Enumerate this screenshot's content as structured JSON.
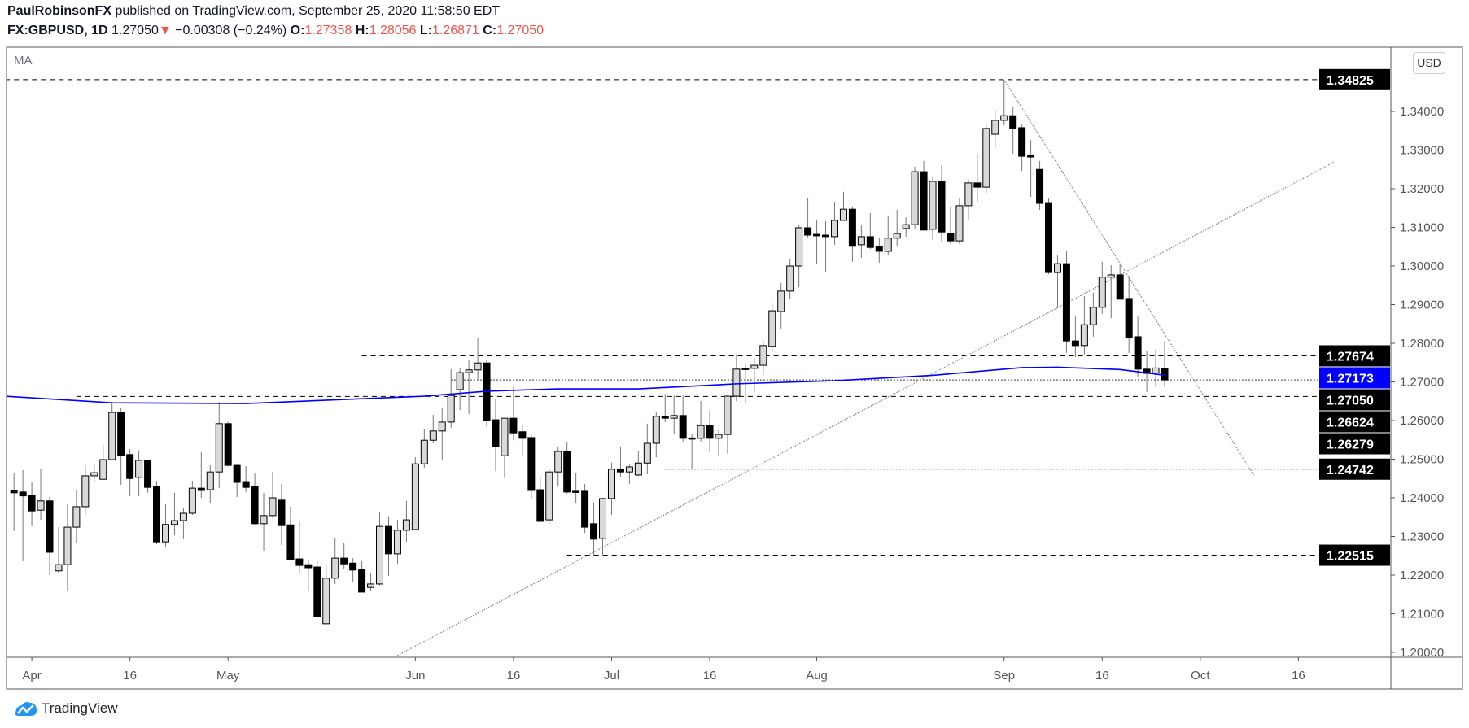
{
  "header": {
    "author": "PaulRobinsonFX",
    "published": " published on TradingView.com, September 25, 2020 11:58:50 EDT",
    "symbol": "FX:GBPUSD, 1D",
    "last": "1.27050",
    "change_icon": "down-triangle-icon",
    "change": "−0.00308 (−0.24%)",
    "o_label": "O:",
    "o": "1.27358",
    "h_label": "H:",
    "h": "1.28056",
    "l_label": "L:",
    "l": "1.26871",
    "c_label": "C:",
    "c": "1.27050"
  },
  "indicator_label": "MA",
  "currency_badge": "USD",
  "footer": {
    "brand": "TradingView",
    "logo_icon": "tradingview-logo-icon"
  },
  "colors": {
    "up_body": "#d9d9d9",
    "down_body": "#000000",
    "wick": "#777777",
    "ma_line": "#0000ff",
    "negative": "#ef5350",
    "label_bg": "#000000",
    "ma_label_bg": "#0000ff",
    "trendline": "#8a8a8a",
    "brand": "#2196f3"
  },
  "chart_data": {
    "type": "candlestick",
    "title": "FX:GBPUSD, 1D",
    "x_unit": "bar index (trading days)",
    "ylim": [
      1.195,
      1.352
    ],
    "candles_ohlc": [
      [
        1.2418,
        1.2465,
        1.2314,
        1.2413
      ],
      [
        1.2415,
        1.2472,
        1.2236,
        1.2405
      ],
      [
        1.2406,
        1.2442,
        1.2326,
        1.2366
      ],
      [
        1.2368,
        1.2474,
        1.2343,
        1.2392
      ],
      [
        1.2392,
        1.2402,
        1.22,
        1.2259
      ],
      [
        1.2211,
        1.2324,
        1.2206,
        1.2227
      ],
      [
        1.2227,
        1.2383,
        1.2158,
        1.2324
      ],
      [
        1.2324,
        1.2419,
        1.2284,
        1.2377
      ],
      [
        1.2377,
        1.2484,
        1.2356,
        1.2457
      ],
      [
        1.2457,
        1.2486,
        1.2442,
        1.2465
      ],
      [
        1.2448,
        1.2537,
        1.2448,
        1.2499
      ],
      [
        1.2499,
        1.2648,
        1.2499,
        1.2621
      ],
      [
        1.2621,
        1.2632,
        1.2434,
        1.251
      ],
      [
        1.2512,
        1.2526,
        1.2404,
        1.245
      ],
      [
        1.2453,
        1.2522,
        1.2404,
        1.2497
      ],
      [
        1.2497,
        1.2499,
        1.2413,
        1.2427
      ],
      [
        1.2429,
        1.2444,
        1.228,
        1.2286
      ],
      [
        1.2286,
        1.2383,
        1.2272,
        1.2331
      ],
      [
        1.2331,
        1.2413,
        1.2303,
        1.2341
      ],
      [
        1.2341,
        1.2375,
        1.2293,
        1.236
      ],
      [
        1.236,
        1.2444,
        1.2356,
        1.2425
      ],
      [
        1.2425,
        1.2518,
        1.24,
        1.2419
      ],
      [
        1.2421,
        1.2484,
        1.2385,
        1.2467
      ],
      [
        1.2467,
        1.2648,
        1.2425,
        1.2592
      ],
      [
        1.2592,
        1.2597,
        1.2482,
        1.2484
      ],
      [
        1.2484,
        1.2486,
        1.2402,
        1.244
      ],
      [
        1.2442,
        1.2482,
        1.2415,
        1.2427
      ],
      [
        1.2429,
        1.2463,
        1.2331,
        1.2333
      ],
      [
        1.2333,
        1.2413,
        1.2261,
        1.2354
      ],
      [
        1.2354,
        1.2467,
        1.2347,
        1.24
      ],
      [
        1.2394,
        1.2436,
        1.2278,
        1.2328
      ],
      [
        1.233,
        1.2377,
        1.224,
        1.224
      ],
      [
        1.2242,
        1.2339,
        1.2204,
        1.2225
      ],
      [
        1.2227,
        1.2238,
        1.216,
        1.2219
      ],
      [
        1.2221,
        1.2236,
        1.2093,
        1.2093
      ],
      [
        1.2074,
        1.2225,
        1.2072,
        1.2192
      ],
      [
        1.2192,
        1.2295,
        1.2177,
        1.2244
      ],
      [
        1.2244,
        1.2284,
        1.2217,
        1.2229
      ],
      [
        1.2231,
        1.2244,
        1.2181,
        1.2213
      ],
      [
        1.2215,
        1.2236,
        1.2156,
        1.2156
      ],
      [
        1.2168,
        1.2206,
        1.2158,
        1.2177
      ],
      [
        1.2177,
        1.2362,
        1.2173,
        1.2326
      ],
      [
        1.2326,
        1.2352,
        1.2198,
        1.2255
      ],
      [
        1.2255,
        1.2343,
        1.2229,
        1.2316
      ],
      [
        1.2316,
        1.2392,
        1.2286,
        1.2343
      ],
      [
        1.2318,
        1.2505,
        1.2318,
        1.2488
      ],
      [
        1.2488,
        1.2577,
        1.2478,
        1.2549
      ],
      [
        1.2549,
        1.2615,
        1.2541,
        1.2573
      ],
      [
        1.2573,
        1.2634,
        1.2497,
        1.2596
      ],
      [
        1.2596,
        1.2733,
        1.2581,
        1.2665
      ],
      [
        1.268,
        1.2737,
        1.2627,
        1.2724
      ],
      [
        1.2724,
        1.2758,
        1.2617,
        1.2731
      ],
      [
        1.2731,
        1.2815,
        1.2705,
        1.2749
      ],
      [
        1.2749,
        1.2756,
        1.2585,
        1.26
      ],
      [
        1.2602,
        1.2655,
        1.2469,
        1.2533
      ],
      [
        1.2509,
        1.2606,
        1.2451,
        1.2606
      ],
      [
        1.2606,
        1.2688,
        1.2549,
        1.2568
      ],
      [
        1.2571,
        1.2589,
        1.2509,
        1.2554
      ],
      [
        1.2556,
        1.2566,
        1.2398,
        1.2419
      ],
      [
        1.2421,
        1.2455,
        1.2339,
        1.2339
      ],
      [
        1.2343,
        1.2476,
        1.2331,
        1.2467
      ],
      [
        1.2467,
        1.2533,
        1.2429,
        1.252
      ],
      [
        1.252,
        1.2543,
        1.2411,
        1.2415
      ],
      [
        1.2417,
        1.2463,
        1.2385,
        1.2415
      ],
      [
        1.2417,
        1.2436,
        1.2309,
        1.2324
      ],
      [
        1.2333,
        1.2387,
        1.2248,
        1.2293
      ],
      [
        1.2295,
        1.24,
        1.2253,
        1.2398
      ],
      [
        1.2398,
        1.2491,
        1.2356,
        1.2474
      ],
      [
        1.2474,
        1.2533,
        1.2453,
        1.2467
      ],
      [
        1.2467,
        1.2486,
        1.2436,
        1.248
      ],
      [
        1.2459,
        1.252,
        1.2457,
        1.249
      ],
      [
        1.249,
        1.2592,
        1.2461,
        1.2541
      ],
      [
        1.2541,
        1.2623,
        1.2505,
        1.2611
      ],
      [
        1.2611,
        1.2669,
        1.2596,
        1.2606
      ],
      [
        1.2606,
        1.2665,
        1.2564,
        1.2613
      ],
      [
        1.2613,
        1.2667,
        1.2545,
        1.2554
      ],
      [
        1.2555,
        1.2564,
        1.2476,
        1.2553
      ],
      [
        1.2554,
        1.2651,
        1.2545,
        1.2587
      ],
      [
        1.2587,
        1.2625,
        1.2518,
        1.2554
      ],
      [
        1.2554,
        1.2575,
        1.2509,
        1.2564
      ],
      [
        1.2564,
        1.2667,
        1.2514,
        1.2663
      ],
      [
        1.2663,
        1.2771,
        1.265,
        1.2733
      ],
      [
        1.2735,
        1.2745,
        1.2646,
        1.2733
      ],
      [
        1.2735,
        1.2762,
        1.2674,
        1.2743
      ],
      [
        1.2743,
        1.2806,
        1.2718,
        1.2794
      ],
      [
        1.2792,
        1.2905,
        1.2777,
        1.2884
      ],
      [
        1.2882,
        1.2956,
        1.2838,
        1.2935
      ],
      [
        1.2935,
        1.3019,
        1.2914,
        1.3
      ],
      [
        1.3,
        1.3107,
        1.2945,
        1.3099
      ],
      [
        1.3099,
        1.3175,
        1.3074,
        1.308
      ],
      [
        1.3082,
        1.312,
        1.3006,
        1.3078
      ],
      [
        1.308,
        1.3116,
        1.2984,
        1.3076
      ],
      [
        1.3076,
        1.3166,
        1.3055,
        1.3118
      ],
      [
        1.3118,
        1.3192,
        1.3118,
        1.3147
      ],
      [
        1.3147,
        1.3154,
        1.3011,
        1.3051
      ],
      [
        1.3055,
        1.3107,
        1.3021,
        1.3076
      ],
      [
        1.3076,
        1.3137,
        1.3044,
        1.3048
      ],
      [
        1.305,
        1.3072,
        1.3008,
        1.3038
      ],
      [
        1.3038,
        1.3131,
        1.3027,
        1.3072
      ],
      [
        1.3072,
        1.3145,
        1.3051,
        1.3084
      ],
      [
        1.3097,
        1.3126,
        1.3076,
        1.3107
      ],
      [
        1.3107,
        1.3257,
        1.3097,
        1.3244
      ],
      [
        1.3244,
        1.3272,
        1.3093,
        1.3093
      ],
      [
        1.3095,
        1.3232,
        1.3067,
        1.3219
      ],
      [
        1.3219,
        1.3261,
        1.3061,
        1.3088
      ],
      [
        1.3084,
        1.3154,
        1.3057,
        1.3065
      ],
      [
        1.3065,
        1.3177,
        1.3057,
        1.3156
      ],
      [
        1.3156,
        1.3225,
        1.312,
        1.3215
      ],
      [
        1.3215,
        1.3291,
        1.3166,
        1.3204
      ],
      [
        1.3204,
        1.3366,
        1.3189,
        1.3356
      ],
      [
        1.3341,
        1.3404,
        1.3305,
        1.3377
      ],
      [
        1.3377,
        1.3482,
        1.3364,
        1.3389
      ],
      [
        1.3389,
        1.3411,
        1.3291,
        1.3356
      ],
      [
        1.3358,
        1.3366,
        1.3246,
        1.3284
      ],
      [
        1.3286,
        1.3326,
        1.3179,
        1.3282
      ],
      [
        1.325,
        1.3272,
        1.3145,
        1.3162
      ],
      [
        1.3164,
        1.3175,
        1.2979,
        1.2983
      ],
      [
        1.2983,
        1.3027,
        1.2891,
        1.3006
      ],
      [
        1.3006,
        1.304,
        1.2775,
        1.2806
      ],
      [
        1.2806,
        1.2869,
        1.2764,
        1.2794
      ],
      [
        1.2794,
        1.2922,
        1.2771,
        1.2848
      ],
      [
        1.2848,
        1.2931,
        1.2817,
        1.2893
      ],
      [
        1.2893,
        1.3011,
        1.2876,
        1.2971
      ],
      [
        1.2971,
        1.3002,
        1.2865,
        1.2977
      ],
      [
        1.2977,
        1.3006,
        1.2914,
        1.2914
      ],
      [
        1.2916,
        1.2973,
        1.2775,
        1.2815
      ],
      [
        1.2817,
        1.2869,
        1.2712,
        1.2733
      ],
      [
        1.2733,
        1.2779,
        1.2674,
        1.2722
      ],
      [
        1.2723,
        1.2783,
        1.2688,
        1.2736
      ],
      [
        1.27358,
        1.28056,
        1.26871,
        1.2705
      ]
    ],
    "first_bar_index": 1,
    "ma_series": {
      "name": "MA",
      "points": [
        [
          0,
          1.2663
        ],
        [
          12,
          1.2646
        ],
        [
          27,
          1.2644
        ],
        [
          47,
          1.2663
        ],
        [
          54,
          1.2676
        ],
        [
          62,
          1.2682
        ],
        [
          71,
          1.2682
        ],
        [
          82,
          1.2695
        ],
        [
          93,
          1.2703
        ],
        [
          104,
          1.2717
        ],
        [
          114,
          1.2737
        ],
        [
          118,
          1.2738
        ],
        [
          125,
          1.2732
        ],
        [
          130,
          1.27173
        ]
      ]
    },
    "y_ticks": [
      {
        "value": 1.34,
        "label": "1.34000"
      },
      {
        "value": 1.33,
        "label": "1.33000"
      },
      {
        "value": 1.32,
        "label": "1.32000"
      },
      {
        "value": 1.31,
        "label": "1.31000"
      },
      {
        "value": 1.3,
        "label": "1.30000"
      },
      {
        "value": 1.29,
        "label": "1.29000"
      },
      {
        "value": 1.28,
        "label": "1.28000"
      },
      {
        "value": 1.27,
        "label": "1.27000"
      },
      {
        "value": 1.26,
        "label": "1.26000"
      },
      {
        "value": 1.25,
        "label": "1.25000"
      },
      {
        "value": 1.24,
        "label": "1.24000"
      },
      {
        "value": 1.23,
        "label": "1.23000"
      },
      {
        "value": 1.22,
        "label": "1.22000"
      },
      {
        "value": 1.21,
        "label": "1.21000"
      },
      {
        "value": 1.2,
        "label": "1.20000"
      }
    ],
    "x_ticks": [
      {
        "bar": 3,
        "label": "Apr"
      },
      {
        "bar": 14,
        "label": "16"
      },
      {
        "bar": 25,
        "label": "May"
      },
      {
        "bar": 46,
        "label": "Jun"
      },
      {
        "bar": 57,
        "label": "16"
      },
      {
        "bar": 68,
        "label": "Jul"
      },
      {
        "bar": 79,
        "label": "16"
      },
      {
        "bar": 91,
        "label": "Aug"
      },
      {
        "bar": 112,
        "label": "Sep"
      },
      {
        "bar": 123,
        "label": "16"
      },
      {
        "bar": 134,
        "label": "Oct"
      },
      {
        "bar": 145,
        "label": "16"
      }
    ],
    "levels": [
      {
        "price": 1.34825,
        "label": "1.34825",
        "style": "dashed",
        "start_bar": 0,
        "label_color": "#000000"
      },
      {
        "price": 1.27674,
        "label": "1.27674",
        "style": "dashed",
        "start_bar": 40,
        "label_color": "#000000"
      },
      {
        "price": 1.27173,
        "label": "1.27173",
        "style": "none",
        "start_bar": 0,
        "label_color": "#0000ff"
      },
      {
        "price": 1.2705,
        "label": "1.27050",
        "style": "dotted",
        "start_bar": 50,
        "label_color": "#000000"
      },
      {
        "price": 1.26624,
        "label": "1.26624",
        "style": "dashed",
        "start_bar": 8,
        "label_color": "#000000"
      },
      {
        "price": 1.26279,
        "label": "1.26279",
        "style": "none",
        "start_bar": 0,
        "label_color": "#000000"
      },
      {
        "price": 1.24742,
        "label": "1.24742",
        "style": "dotted",
        "start_bar": 74,
        "label_color": "#000000"
      },
      {
        "price": 1.22515,
        "label": "1.22515",
        "style": "dashed",
        "start_bar": 63,
        "label_color": "#000000"
      }
    ],
    "trendlines": [
      {
        "name": "ascending-trendline",
        "from": [
          44,
          1.1992
        ],
        "to": [
          149,
          1.3269
        ]
      },
      {
        "name": "descending-trendline",
        "from": [
          112,
          1.3482
        ],
        "to": [
          140,
          1.2459
        ]
      }
    ]
  }
}
